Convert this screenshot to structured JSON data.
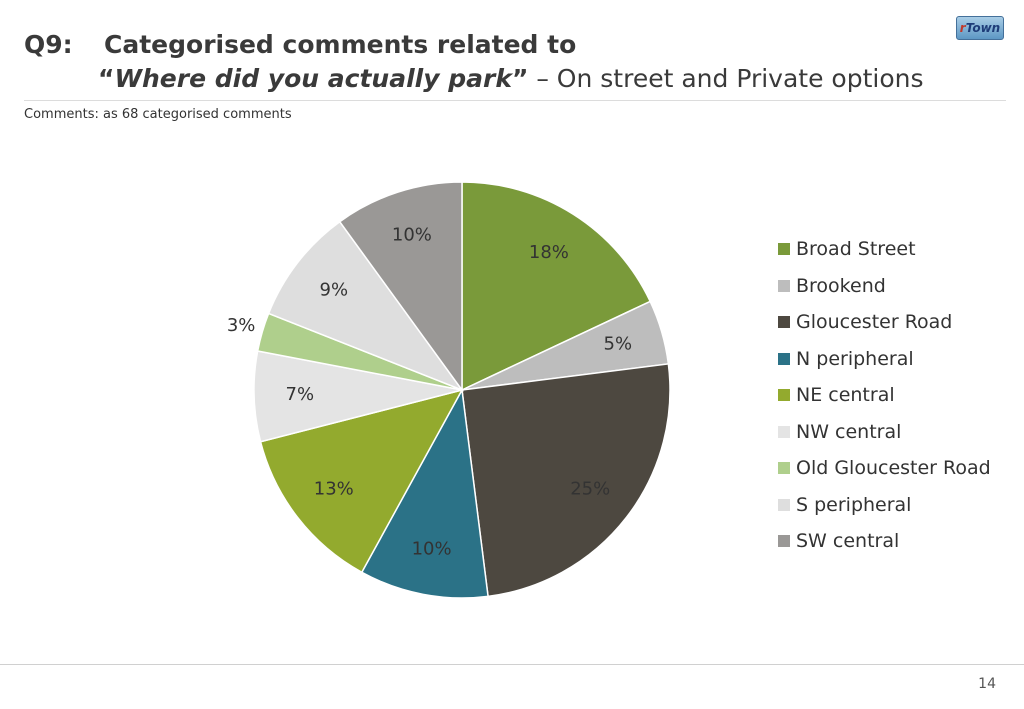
{
  "header": {
    "question": "Q9:",
    "title_line1": "Categorised comments related to",
    "open_quote": "“",
    "quoted": "Where did you actually park",
    "close_quote": "”",
    "title_rest": " – On street and Private options"
  },
  "note": "Comments: as 68 categorised comments",
  "logo": {
    "prefix": "r",
    "text": "Town"
  },
  "page_number": "14",
  "chart_data": {
    "type": "pie",
    "title": "",
    "start_angle_deg": 0,
    "direction": "clockwise",
    "legend_position": "right",
    "slices": [
      {
        "name": "Broad Street",
        "value": 18,
        "label": "18%",
        "color": "#7a9a3a"
      },
      {
        "name": "Brookend",
        "value": 5,
        "label": "5%",
        "color": "#bdbdbd"
      },
      {
        "name": "Gloucester Road",
        "value": 25,
        "label": "25%",
        "color": "#4d4840"
      },
      {
        "name": "N peripheral",
        "value": 10,
        "label": "10%",
        "color": "#2b7287"
      },
      {
        "name": "NE central",
        "value": 13,
        "label": "13%",
        "color": "#93aa2e"
      },
      {
        "name": "NW central",
        "value": 7,
        "label": "7%",
        "color": "#e4e4e4"
      },
      {
        "name": "Old Gloucester Road",
        "value": 3,
        "label": "3%",
        "color": "#afcf8c"
      },
      {
        "name": "S peripheral",
        "value": 9,
        "label": "9%",
        "color": "#dedede"
      },
      {
        "name": "SW central",
        "value": 10,
        "label": "10%",
        "color": "#9a9896"
      }
    ]
  }
}
